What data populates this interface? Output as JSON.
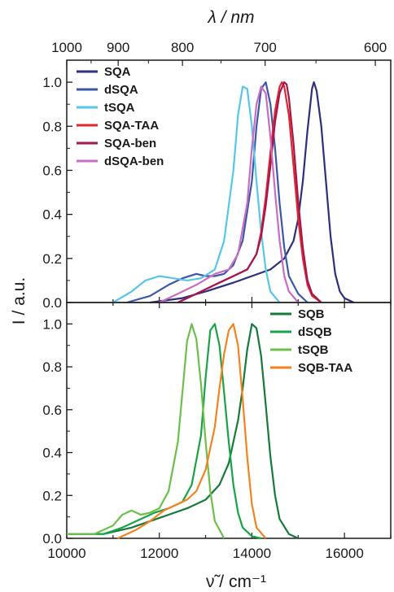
{
  "chart_data": {
    "type": "line",
    "top_axis": {
      "label": "λ / nm",
      "tick_labels": [
        "1000",
        "900",
        "800",
        "700",
        "600"
      ],
      "tick_values": [
        1000,
        900,
        800,
        700,
        600
      ]
    },
    "ylabel": "I / a.u.",
    "xlabel": "ν̃ / cm⁻¹",
    "x_tick_labels": [
      "10000",
      "12000",
      "14000",
      "16000"
    ],
    "x_tick_values": [
      10000,
      12000,
      14000,
      16000
    ],
    "xlim": [
      10000,
      17000
    ],
    "panels": [
      {
        "name": "top",
        "ylim": [
          0,
          1.1
        ],
        "y_tick_labels": [
          "0.0",
          "0.2",
          "0.4",
          "0.6",
          "0.8",
          "1.0"
        ],
        "y_tick_values": [
          0,
          0.2,
          0.4,
          0.6,
          0.8,
          1.0
        ],
        "legend_position": "top-left",
        "series": [
          {
            "name": "SQA",
            "color": "#2b2f7e",
            "x": [
              11800,
              12500,
              13000,
              13600,
              14000,
              14400,
              14700,
              14900,
              15000,
              15100,
              15200,
              15300,
              15340,
              15400,
              15500,
              15600,
              15700,
              15800,
              15900,
              16000,
              16200
            ],
            "y": [
              0.0,
              0.02,
              0.05,
              0.09,
              0.12,
              0.15,
              0.2,
              0.28,
              0.38,
              0.55,
              0.78,
              0.97,
              1.0,
              0.96,
              0.8,
              0.55,
              0.3,
              0.13,
              0.05,
              0.02,
              0.0
            ]
          },
          {
            "name": "dSQA",
            "color": "#3b57a8",
            "x": [
              11300,
              11800,
              12200,
              12500,
              12800,
              13000,
              13200,
              13400,
              13600,
              13800,
              14000,
              14100,
              14200,
              14300,
              14400,
              14500,
              14600,
              14700,
              14800,
              15000,
              15200
            ],
            "y": [
              0.0,
              0.03,
              0.08,
              0.11,
              0.13,
              0.12,
              0.12,
              0.13,
              0.17,
              0.28,
              0.55,
              0.8,
              0.97,
              1.0,
              0.9,
              0.7,
              0.45,
              0.25,
              0.12,
              0.04,
              0.0
            ]
          },
          {
            "name": "tSQA",
            "color": "#56c6ea",
            "x": [
              11000,
              11400,
              11700,
              12000,
              12300,
              12600,
              12900,
              13200,
              13400,
              13600,
              13700,
              13800,
              13900,
              14000,
              14100,
              14200,
              14300,
              14400,
              14600
            ],
            "y": [
              0.0,
              0.05,
              0.1,
              0.12,
              0.11,
              0.1,
              0.11,
              0.15,
              0.28,
              0.6,
              0.85,
              0.98,
              0.97,
              0.8,
              0.55,
              0.32,
              0.15,
              0.05,
              0.0
            ]
          },
          {
            "name": "SQA-TAA",
            "color": "#e1262c",
            "x": [
              12400,
              12800,
              13200,
              13600,
              13900,
              14100,
              14200,
              14300,
              14400,
              14500,
              14600,
              14650,
              14700,
              14800,
              14900,
              15000,
              15100,
              15200,
              15300,
              15500
            ],
            "y": [
              0.0,
              0.04,
              0.08,
              0.12,
              0.15,
              0.22,
              0.32,
              0.48,
              0.68,
              0.87,
              0.98,
              1.0,
              0.98,
              0.85,
              0.62,
              0.38,
              0.2,
              0.08,
              0.03,
              0.0
            ]
          },
          {
            "name": "SQA-ben",
            "color": "#a3164f",
            "x": [
              12400,
              12800,
              13200,
              13600,
              13900,
              14100,
              14200,
              14300,
              14400,
              14500,
              14600,
              14700,
              14750,
              14800,
              14900,
              15000,
              15100,
              15200,
              15300,
              15500
            ],
            "y": [
              0.0,
              0.04,
              0.08,
              0.12,
              0.15,
              0.22,
              0.3,
              0.44,
              0.62,
              0.82,
              0.95,
              1.0,
              0.99,
              0.93,
              0.72,
              0.46,
              0.25,
              0.1,
              0.04,
              0.0
            ]
          },
          {
            "name": "dSQA-ben",
            "color": "#c96cc4",
            "x": [
              12000,
              12400,
              12800,
              13200,
              13500,
              13700,
              13900,
              14000,
              14100,
              14200,
              14300,
              14400,
              14500,
              14600,
              14700,
              14800,
              15000
            ],
            "y": [
              0.0,
              0.04,
              0.08,
              0.13,
              0.15,
              0.22,
              0.45,
              0.7,
              0.9,
              0.98,
              0.95,
              0.75,
              0.5,
              0.28,
              0.12,
              0.05,
              0.0
            ]
          }
        ]
      },
      {
        "name": "bottom",
        "ylim": [
          0,
          1.1
        ],
        "y_tick_labels": [
          "0.0",
          "0.2",
          "0.4",
          "0.6",
          "0.8",
          "1.0"
        ],
        "y_tick_values": [
          0,
          0.2,
          0.4,
          0.6,
          0.8,
          1.0
        ],
        "legend_position": "top-right",
        "series": [
          {
            "name": "SQB",
            "color": "#157a3a",
            "x": [
              10000,
              10800,
              11400,
              11800,
              12200,
              12600,
              13000,
              13300,
              13500,
              13700,
              13800,
              13900,
              14000,
              14100,
              14200,
              14300,
              14400,
              14500,
              14600,
              14800,
              15000
            ],
            "y": [
              0.02,
              0.02,
              0.05,
              0.08,
              0.11,
              0.14,
              0.18,
              0.25,
              0.35,
              0.55,
              0.7,
              0.88,
              1.0,
              0.98,
              0.85,
              0.62,
              0.38,
              0.2,
              0.09,
              0.02,
              0.0
            ]
          },
          {
            "name": "dSQB",
            "color": "#18a347",
            "x": [
              10000,
              10800,
              11200,
              11600,
              11900,
              12200,
              12500,
              12700,
              12900,
              13000,
              13100,
              13200,
              13300,
              13400,
              13500,
              13600,
              13700,
              13800,
              14000,
              14200
            ],
            "y": [
              0.02,
              0.02,
              0.05,
              0.09,
              0.12,
              0.14,
              0.17,
              0.25,
              0.48,
              0.75,
              0.97,
              1.0,
              0.9,
              0.68,
              0.45,
              0.25,
              0.12,
              0.05,
              0.01,
              0.0
            ]
          },
          {
            "name": "tSQB",
            "color": "#6cc04a",
            "x": [
              10000,
              10600,
              11000,
              11200,
              11400,
              11600,
              11800,
              12000,
              12200,
              12400,
              12500,
              12600,
              12700,
              12800,
              12900,
              13000,
              13100,
              13200,
              13400
            ],
            "y": [
              0.02,
              0.02,
              0.06,
              0.11,
              0.13,
              0.11,
              0.12,
              0.14,
              0.22,
              0.45,
              0.68,
              0.92,
              1.0,
              0.93,
              0.72,
              0.45,
              0.22,
              0.08,
              0.0
            ]
          },
          {
            "name": "SQB-TAA",
            "color": "#f4821f",
            "x": [
              11100,
              11500,
              11800,
              12100,
              12400,
              12600,
              12800,
              13000,
              13200,
              13300,
              13400,
              13500,
              13600,
              13700,
              13800,
              13900,
              14000,
              14100,
              14300
            ],
            "y": [
              0.0,
              0.04,
              0.08,
              0.13,
              0.16,
              0.18,
              0.22,
              0.32,
              0.52,
              0.7,
              0.86,
              0.97,
              1.0,
              0.9,
              0.65,
              0.38,
              0.16,
              0.05,
              0.0
            ]
          }
        ]
      }
    ]
  }
}
